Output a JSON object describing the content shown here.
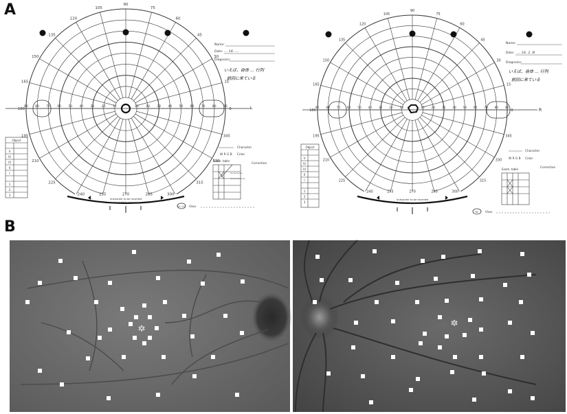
{
  "panel_labels": {
    "a": "A",
    "b": "B"
  },
  "perimetry_left": {
    "eye": "L",
    "meridian_labels": [
      "90",
      "105",
      "120",
      "135",
      "150",
      "165",
      "180",
      "195",
      "210",
      "225",
      "240",
      "255",
      "270",
      "285",
      "300",
      "315",
      "330",
      "345",
      "0",
      "15",
      "30",
      "45",
      "60",
      "75"
    ],
    "form_labels": [
      "Name:",
      "Date:",
      "Diagnosis:",
      "Character",
      "Color",
      "Correction",
      "Exam. table"
    ],
    "handwritten_note": [
      "いえば、自体 … 行列",
      "前回に来ている"
    ],
    "date_value": "… 16. …",
    "table_box_title": "Object",
    "table_box_rows": [
      "V",
      "IV",
      "III",
      "II",
      "I"
    ],
    "table_box_footer": [
      "1",
      "2",
      "3",
      "4"
    ],
    "bottom_text": [
      "Ill-disorder to be recorded",
      "visual field and area"
    ],
    "visus_text": "Visus",
    "visus_badge": "Lt. (L)"
  },
  "perimetry_right": {
    "eye": "R",
    "form_labels": [
      "Name:",
      "Date:",
      "Diagnosis:",
      "Character",
      "Color",
      "Correction",
      "Exam. table"
    ],
    "handwritten_note": [
      "いえば、自体 … 行列",
      "前回に来ている"
    ],
    "date_value": "… 16. 2. R",
    "table_box_title": "Object",
    "table_box_rows": [
      "V",
      "IV",
      "III",
      "II",
      "I"
    ],
    "table_box_footer": [
      "1",
      "2",
      "3",
      "4"
    ],
    "bottom_text": [
      "Ill-disorder to be recorded",
      "visual field and area"
    ],
    "visus_text": "Visus",
    "visus_badge": "Rt."
  },
  "fundus_left": {
    "fixation_marker": "*"
  },
  "fundus_right": {
    "fixation_marker": "*"
  },
  "colors": {
    "ink": "#2a2a2a",
    "fundus_bg_left": "#6f6f6f",
    "fundus_bg_right": "#5e5e5e",
    "stim": "#ffffff"
  }
}
